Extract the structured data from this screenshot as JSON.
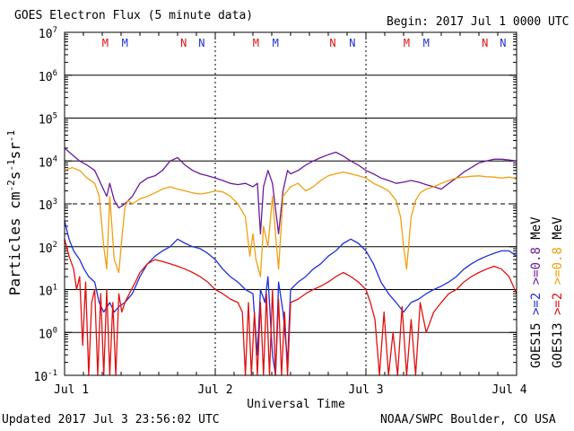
{
  "header": {
    "title": "GOES Electron Flux (5 minute data)",
    "begin": "Begin: 2017 Jul 1 0000 UTC"
  },
  "footer": {
    "updated": "Updated 2017 Jul  3 23:56:02 UTC",
    "credit": "NOAA/SWPC Boulder, CO USA"
  },
  "chart_data": {
    "type": "line",
    "title": "GOES Electron Flux (5 minute data)",
    "xlabel": "Universal Time",
    "ylabel": "Particles cm-2s-1sr-1",
    "y_scale": "log",
    "ylim": [
      0.1,
      10000000
    ],
    "xlim_days": [
      0,
      3
    ],
    "x_ticks": [
      "Jul 1",
      "Jul 2",
      "Jul 3",
      "Jul 4"
    ],
    "y_ticks": [
      {
        "base": "10",
        "exp": "-1"
      },
      {
        "base": "10",
        "exp": "0"
      },
      {
        "base": "10",
        "exp": "1"
      },
      {
        "base": "10",
        "exp": "2"
      },
      {
        "base": "10",
        "exp": "3"
      },
      {
        "base": "10",
        "exp": "4"
      },
      {
        "base": "10",
        "exp": "5"
      },
      {
        "base": "10",
        "exp": "6"
      },
      {
        "base": "10",
        "exp": "7"
      }
    ],
    "dashed_threshold": 1000,
    "grid": true,
    "legend_right": [
      {
        "sat": "GOES15",
        "label": ">=2",
        "color": "#1f2fd6"
      },
      {
        "label": ">=0.8",
        "color": "#6a1b9a"
      },
      {
        "unit": "MeV"
      },
      {
        "sat": "GOES13",
        "label": ">=2",
        "color": "#e01010"
      },
      {
        "label": ">=0.8",
        "color": "#f0a010"
      },
      {
        "unit": "MeV"
      }
    ],
    "mn_markers": {
      "labels": [
        "M",
        "M",
        "N",
        "N"
      ],
      "colors": [
        "#e01010",
        "#1f2fd6",
        "#e01010",
        "#1f2fd6"
      ],
      "positions_days": [
        [
          0.27,
          0.4,
          0.79,
          0.91
        ],
        [
          1.27,
          1.4,
          1.78,
          1.91
        ],
        [
          2.27,
          2.4,
          2.79,
          2.91
        ]
      ]
    },
    "series": [
      {
        "name": "GOES15 >=0.8 MeV",
        "color": "#6a1b9a",
        "x": [
          0.0,
          0.05,
          0.1,
          0.15,
          0.2,
          0.25,
          0.28,
          0.3,
          0.33,
          0.36,
          0.4,
          0.45,
          0.5,
          0.55,
          0.6,
          0.65,
          0.7,
          0.75,
          0.8,
          0.85,
          0.9,
          0.95,
          1.0,
          1.05,
          1.1,
          1.15,
          1.2,
          1.25,
          1.28,
          1.3,
          1.32,
          1.35,
          1.38,
          1.42,
          1.45,
          1.48,
          1.5,
          1.55,
          1.6,
          1.65,
          1.7,
          1.75,
          1.8,
          1.85,
          1.9,
          1.95,
          2.0,
          2.05,
          2.1,
          2.15,
          2.2,
          2.25,
          2.3,
          2.35,
          2.4,
          2.45,
          2.5,
          2.55,
          2.6,
          2.65,
          2.7,
          2.75,
          2.8,
          2.85,
          2.9,
          2.95,
          3.0
        ],
        "values": [
          20000,
          14000,
          10000,
          8000,
          6000,
          2500,
          1500,
          3000,
          1200,
          800,
          1000,
          1500,
          3000,
          4000,
          4500,
          6000,
          10000,
          12000,
          8000,
          6000,
          5000,
          4500,
          4000,
          3500,
          3000,
          2800,
          3000,
          2500,
          3000,
          200,
          2500,
          6000,
          3000,
          200,
          2000,
          6000,
          5000,
          6000,
          8000,
          10000,
          12000,
          14000,
          16000,
          13000,
          10000,
          8000,
          6000,
          5000,
          4000,
          3500,
          3000,
          3200,
          3500,
          3200,
          2800,
          2500,
          2200,
          3000,
          4000,
          5500,
          7000,
          9000,
          10000,
          11000,
          11000,
          10500,
          10000
        ]
      },
      {
        "name": "GOES13 >=0.8 MeV",
        "color": "#f0a010",
        "x": [
          0.0,
          0.05,
          0.1,
          0.15,
          0.2,
          0.23,
          0.26,
          0.28,
          0.3,
          0.33,
          0.36,
          0.38,
          0.4,
          0.42,
          0.45,
          0.5,
          0.55,
          0.6,
          0.65,
          0.7,
          0.75,
          0.8,
          0.85,
          0.9,
          0.95,
          1.0,
          1.05,
          1.1,
          1.15,
          1.2,
          1.23,
          1.25,
          1.27,
          1.3,
          1.32,
          1.35,
          1.38,
          1.4,
          1.42,
          1.45,
          1.5,
          1.55,
          1.6,
          1.65,
          1.7,
          1.75,
          1.8,
          1.85,
          1.9,
          1.95,
          2.0,
          2.05,
          2.1,
          2.15,
          2.2,
          2.23,
          2.25,
          2.27,
          2.3,
          2.33,
          2.36,
          2.4,
          2.45,
          2.5,
          2.55,
          2.6,
          2.65,
          2.7,
          2.75,
          2.8,
          2.85,
          2.9,
          2.95,
          3.0
        ],
        "values": [
          6000,
          7000,
          6000,
          4000,
          3000,
          1500,
          100,
          30,
          1500,
          50,
          25,
          150,
          800,
          1200,
          1000,
          1300,
          1500,
          1800,
          2200,
          2500,
          2200,
          2000,
          1800,
          1700,
          1800,
          2000,
          1900,
          1500,
          1000,
          500,
          60,
          200,
          50,
          20,
          300,
          100,
          1500,
          200,
          30,
          1500,
          2500,
          3000,
          2000,
          2500,
          3500,
          4500,
          5000,
          5500,
          5000,
          4500,
          4000,
          3000,
          2500,
          2000,
          1200,
          500,
          100,
          30,
          500,
          1200,
          1800,
          2200,
          2500,
          3000,
          3500,
          4000,
          4200,
          4400,
          4500,
          4300,
          4200,
          4000,
          4200,
          3800
        ]
      },
      {
        "name": "GOES15 >=2 MeV",
        "color": "#1f2fd6",
        "x": [
          0.0,
          0.03,
          0.06,
          0.1,
          0.13,
          0.16,
          0.2,
          0.23,
          0.26,
          0.3,
          0.33,
          0.36,
          0.4,
          0.45,
          0.5,
          0.55,
          0.6,
          0.65,
          0.7,
          0.75,
          0.8,
          0.85,
          0.9,
          0.95,
          1.0,
          1.05,
          1.1,
          1.15,
          1.2,
          1.25,
          1.28,
          1.3,
          1.33,
          1.35,
          1.38,
          1.4,
          1.42,
          1.45,
          1.48,
          1.5,
          1.55,
          1.6,
          1.65,
          1.7,
          1.75,
          1.8,
          1.85,
          1.9,
          1.95,
          2.0,
          2.05,
          2.1,
          2.15,
          2.2,
          2.25,
          2.3,
          2.35,
          2.4,
          2.45,
          2.5,
          2.55,
          2.6,
          2.65,
          2.7,
          2.75,
          2.8,
          2.85,
          2.9,
          2.95,
          3.0
        ],
        "values": [
          400,
          150,
          80,
          50,
          30,
          20,
          15,
          5,
          3,
          5,
          3,
          4,
          5,
          8,
          20,
          40,
          60,
          80,
          100,
          150,
          120,
          100,
          90,
          70,
          50,
          30,
          20,
          15,
          10,
          8,
          0.3,
          10,
          5,
          20,
          0.3,
          0.1,
          15,
          3,
          0.2,
          10,
          15,
          20,
          30,
          40,
          60,
          80,
          120,
          150,
          120,
          80,
          40,
          15,
          8,
          5,
          3,
          5,
          6,
          8,
          10,
          12,
          15,
          20,
          30,
          40,
          50,
          60,
          70,
          80,
          80,
          60
        ]
      },
      {
        "name": "GOES13 >=2 MeV",
        "color": "#e01010",
        "x": [
          0.0,
          0.03,
          0.06,
          0.08,
          0.1,
          0.12,
          0.14,
          0.16,
          0.18,
          0.2,
          0.22,
          0.24,
          0.26,
          0.28,
          0.3,
          0.32,
          0.34,
          0.36,
          0.38,
          0.4,
          0.43,
          0.47,
          0.5,
          0.55,
          0.6,
          0.65,
          0.7,
          0.75,
          0.8,
          0.85,
          0.9,
          0.95,
          1.0,
          1.05,
          1.1,
          1.15,
          1.18,
          1.2,
          1.22,
          1.24,
          1.26,
          1.28,
          1.3,
          1.32,
          1.34,
          1.36,
          1.38,
          1.4,
          1.42,
          1.44,
          1.46,
          1.48,
          1.5,
          1.55,
          1.6,
          1.65,
          1.7,
          1.75,
          1.8,
          1.85,
          1.9,
          1.95,
          2.0,
          2.03,
          2.06,
          2.09,
          2.12,
          2.15,
          2.18,
          2.21,
          2.24,
          2.27,
          2.3,
          2.33,
          2.36,
          2.4,
          2.45,
          2.5,
          2.55,
          2.6,
          2.65,
          2.7,
          2.75,
          2.8,
          2.85,
          2.9,
          2.95,
          3.0
        ],
        "values": [
          150,
          60,
          30,
          10,
          20,
          0.5,
          15,
          0.1,
          5,
          10,
          0.1,
          8,
          0.1,
          10,
          0.1,
          5,
          0.1,
          8,
          3,
          5,
          8,
          15,
          25,
          40,
          50,
          45,
          40,
          35,
          30,
          25,
          20,
          15,
          10,
          8,
          6,
          5,
          3,
          0.1,
          5,
          0.1,
          3,
          0.1,
          5,
          0.1,
          8,
          0.1,
          10,
          0.1,
          6,
          0.1,
          3,
          0.1,
          5,
          6,
          8,
          10,
          12,
          15,
          20,
          25,
          20,
          15,
          10,
          5,
          2,
          0.1,
          3,
          0.1,
          1,
          0.1,
          4,
          0.1,
          2,
          0.1,
          5,
          1,
          3,
          5,
          8,
          10,
          15,
          20,
          25,
          30,
          35,
          30,
          20,
          8
        ]
      }
    ]
  }
}
